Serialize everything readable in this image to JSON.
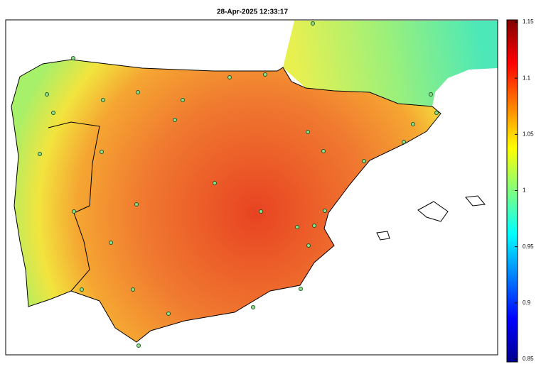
{
  "title": "28-Apr-2025 12:33:17",
  "colorbar": {
    "lim": [
      0.85,
      1.15
    ],
    "ticks": [
      0.85,
      0.9,
      0.95,
      1,
      1.05,
      1.1,
      1.15
    ]
  }
}
